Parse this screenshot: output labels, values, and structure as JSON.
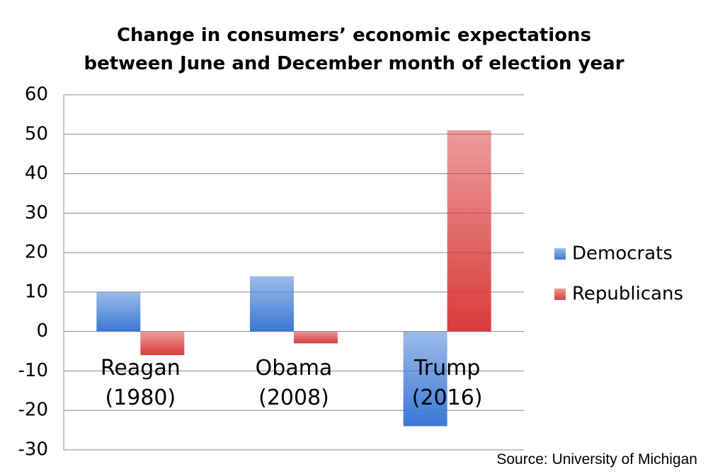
{
  "chart_data": {
    "type": "bar",
    "title": "Change in consumers’ economic expectations between June and December month of election year",
    "categories": [
      "Reagan (1980)",
      "Obama (2008)",
      "Trump (2016)"
    ],
    "series": [
      {
        "name": "Democrats",
        "color": "#3a78d4",
        "values": [
          10,
          14,
          -24
        ]
      },
      {
        "name": "Republicans",
        "color": "#d93a3a",
        "values": [
          -6,
          -3,
          51
        ]
      }
    ],
    "ylim": [
      -30,
      60
    ],
    "yticks": [
      -30,
      -20,
      -10,
      0,
      10,
      20,
      30,
      40,
      50,
      60
    ],
    "grid": true,
    "legend": "right",
    "source": "Source: University of Michigan"
  }
}
